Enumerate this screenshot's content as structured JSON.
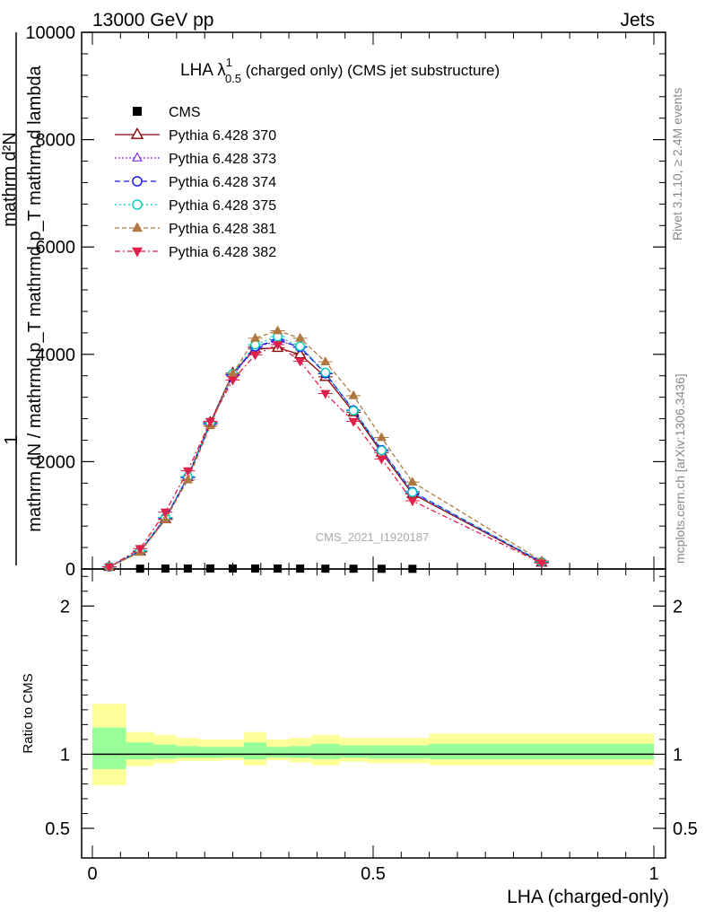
{
  "header": {
    "left": "13000 GeV pp",
    "right": "Jets",
    "title_main": "LHA λ",
    "title_sup": "1",
    "title_sub": "0.5",
    "title_rest": " (charged only) (CMS jet substructure)",
    "watermark": "CMS_2021_I1920187",
    "side_rivet": "Rivet 3.1.10, ≥ 2.4M events",
    "side_mcplots": "mcplots.cern.ch [arXiv:1306.3436]"
  },
  "colors": {
    "cms": "#000000",
    "p370": "#8b0000",
    "p373": "#8a2be2",
    "p374": "#1010ee",
    "p375": "#00ccb8",
    "p381": "#b07840",
    "p382": "#e0204a",
    "band_outer": "#ffff99",
    "band_inner": "#99ff99"
  },
  "chart_data": [
    {
      "type": "line",
      "panel": "main",
      "ylabel_numerator": "1",
      "ylabel_denominator": "mathrm dN / mathrmd p_T mathrmd p_T mathrm d lambda",
      "ylabel_top": "mathrm d²N",
      "ylim": [
        0,
        10000
      ],
      "y_ticks": [
        0,
        2000,
        4000,
        6000,
        8000,
        10000
      ],
      "y_tick_labels": [
        "0",
        "2000",
        "4000",
        "6000",
        "8000",
        "10000"
      ],
      "xlim": [
        0,
        1
      ],
      "legend_position": "top-left",
      "series": [
        {
          "name": "CMS",
          "key": "cms",
          "marker": "square",
          "x": [
            0.085,
            0.13,
            0.17,
            0.21,
            0.25,
            0.29,
            0.33,
            0.37,
            0.415,
            0.465,
            0.515,
            0.57
          ],
          "y": [
            6,
            8,
            9,
            10,
            9,
            9,
            8,
            7,
            6,
            5,
            4,
            3
          ]
        },
        {
          "name": "Pythia 6.428 370",
          "key": "p370",
          "marker": "triangle-open",
          "dash": "",
          "x": [
            0.03,
            0.085,
            0.13,
            0.17,
            0.21,
            0.25,
            0.29,
            0.33,
            0.37,
            0.415,
            0.465,
            0.515,
            0.57,
            0.8
          ],
          "y": [
            40,
            330,
            930,
            1720,
            2730,
            3650,
            4100,
            4120,
            4000,
            3580,
            2920,
            2170,
            1400,
            120
          ]
        },
        {
          "name": "Pythia 6.428 373",
          "key": "p373",
          "marker": "triangle-open-small",
          "dash": "2,2",
          "x": [
            0.03,
            0.085,
            0.13,
            0.17,
            0.21,
            0.25,
            0.29,
            0.33,
            0.37,
            0.415,
            0.465,
            0.515,
            0.57,
            0.8
          ],
          "y": [
            40,
            340,
            950,
            1700,
            2700,
            3600,
            4130,
            4250,
            4150,
            3640,
            2960,
            2200,
            1420,
            130
          ]
        },
        {
          "name": "Pythia 6.428 374",
          "key": "p374",
          "marker": "circle-open",
          "dash": "6,4",
          "x": [
            0.03,
            0.085,
            0.13,
            0.17,
            0.21,
            0.25,
            0.29,
            0.33,
            0.37,
            0.415,
            0.465,
            0.515,
            0.57,
            0.8
          ],
          "y": [
            40,
            340,
            950,
            1710,
            2710,
            3620,
            4140,
            4270,
            4130,
            3640,
            2960,
            2220,
            1440,
            130
          ]
        },
        {
          "name": "Pythia 6.428 375",
          "key": "p375",
          "marker": "circle-open",
          "dash": "2,3",
          "x": [
            0.03,
            0.085,
            0.13,
            0.17,
            0.21,
            0.25,
            0.29,
            0.33,
            0.37,
            0.415,
            0.465,
            0.515,
            0.57,
            0.8
          ],
          "y": [
            40,
            340,
            960,
            1720,
            2720,
            3640,
            4180,
            4330,
            4150,
            3660,
            2950,
            2210,
            1430,
            130
          ]
        },
        {
          "name": "Pythia 6.428 381",
          "key": "p381",
          "marker": "triangle-filled",
          "dash": "5,3",
          "x": [
            0.03,
            0.085,
            0.13,
            0.17,
            0.21,
            0.25,
            0.29,
            0.33,
            0.37,
            0.415,
            0.465,
            0.515,
            0.57,
            0.8
          ],
          "y": [
            40,
            310,
            920,
            1660,
            2670,
            3640,
            4300,
            4440,
            4300,
            3860,
            3230,
            2450,
            1620,
            150
          ]
        },
        {
          "name": "Pythia 6.428 382",
          "key": "p382",
          "marker": "triangle-down-filled",
          "dash": "6,3,2,3",
          "x": [
            0.03,
            0.085,
            0.13,
            0.17,
            0.21,
            0.25,
            0.29,
            0.33,
            0.37,
            0.415,
            0.465,
            0.515,
            0.57,
            0.8
          ],
          "y": [
            40,
            380,
            1060,
            1830,
            2750,
            3520,
            3990,
            4180,
            3870,
            3270,
            2750,
            2050,
            1270,
            110
          ]
        }
      ]
    },
    {
      "type": "area",
      "panel": "ratio",
      "xlabel": "LHA (charged-only)",
      "ylabel": "Ratio to CMS",
      "xlim": [
        0,
        1
      ],
      "ylim": [
        0.3,
        2.25
      ],
      "x_ticks": [
        0,
        0.5,
        1
      ],
      "x_tick_labels": [
        "0",
        "0.5",
        "1"
      ],
      "y_ticks": [
        0.5,
        1,
        2
      ],
      "y_tick_labels": [
        "0.5",
        "1",
        "2"
      ],
      "bins": [
        0,
        0.06,
        0.11,
        0.15,
        0.19,
        0.23,
        0.27,
        0.31,
        0.35,
        0.39,
        0.44,
        0.49,
        0.54,
        0.6,
        1.0
      ],
      "outer_lo": [
        0.79,
        0.92,
        0.94,
        0.955,
        0.955,
        0.96,
        0.925,
        0.96,
        0.945,
        0.925,
        0.95,
        0.94,
        0.94,
        0.925
      ],
      "outer_hi": [
        1.34,
        1.15,
        1.13,
        1.11,
        1.1,
        1.1,
        1.15,
        1.1,
        1.11,
        1.13,
        1.11,
        1.11,
        1.11,
        1.14
      ],
      "inner_lo": [
        0.9,
        0.965,
        0.97,
        0.975,
        0.975,
        0.978,
        0.965,
        0.978,
        0.975,
        0.968,
        0.975,
        0.97,
        0.97,
        0.965
      ],
      "inner_hi": [
        1.18,
        1.08,
        1.065,
        1.055,
        1.05,
        1.05,
        1.08,
        1.05,
        1.055,
        1.07,
        1.06,
        1.06,
        1.06,
        1.07
      ],
      "reference": 1
    }
  ]
}
